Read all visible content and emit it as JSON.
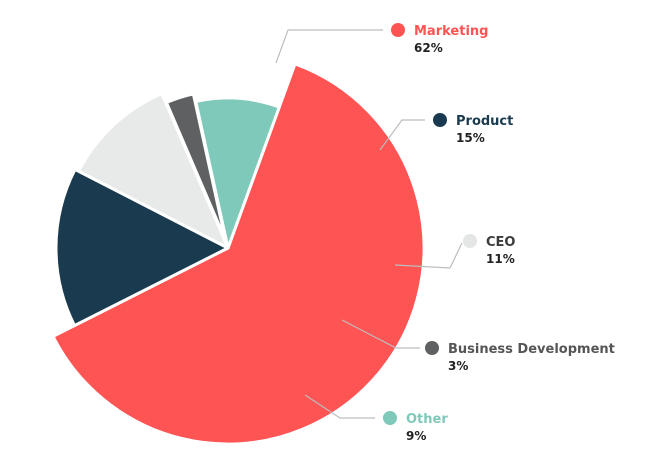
{
  "chart_data": {
    "type": "pie",
    "title": "",
    "slices": [
      {
        "label": "Marketing",
        "value": 62,
        "value_label": "62%",
        "color": "#fe5454",
        "label_color": "#fe5454",
        "label_side": "upper-right"
      },
      {
        "label": "Product",
        "value": 15,
        "value_label": "15%",
        "color": "#1a3b4f",
        "label_color": "#1a3b4f",
        "label_side": "right"
      },
      {
        "label": "CEO",
        "value": 11,
        "value_label": "11%",
        "color": "#e8eaea",
        "label_color": "#3b3b3b",
        "label_side": "right"
      },
      {
        "label": "Business Development",
        "value": 3,
        "value_label": "3%",
        "color": "#5f6062",
        "label_color": "#555555",
        "label_side": "right"
      },
      {
        "label": "Other",
        "value": 9,
        "value_label": "9%",
        "color": "#7ec9b9",
        "label_color": "#7ec9b9",
        "label_side": "lower-right"
      }
    ],
    "legend": "none",
    "label_style": "callout-lines"
  }
}
